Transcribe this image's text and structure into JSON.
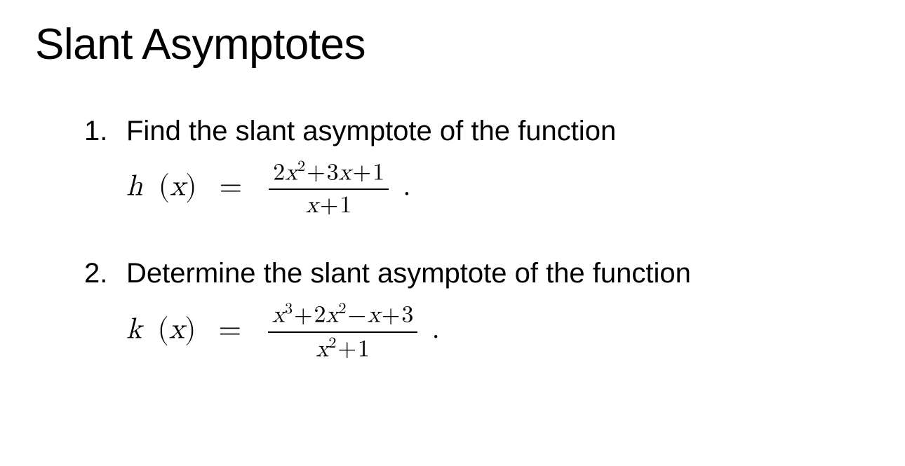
{
  "title": "Slant Asymptotes",
  "text_color": "#000000",
  "background_color": "#ffffff",
  "title_fontsize": 62,
  "body_fontsize": 40,
  "math_fontsize": 42,
  "frac_fontsize": 34,
  "problems": [
    {
      "number": "1.",
      "text": "Find the slant asymptote of the function",
      "function_name": "h",
      "function_var": "x",
      "numerator_parts": [
        "2",
        "x",
        "2",
        "+",
        "3",
        "x",
        "+",
        "1"
      ],
      "denominator_parts": [
        "x",
        "+",
        "1"
      ],
      "numerator_display": "2x²+3x+1",
      "denominator_display": "x+1"
    },
    {
      "number": "2.",
      "text": "Determine the slant asymptote of the function",
      "function_name": "k",
      "function_var": "x",
      "numerator_parts": [
        "x",
        "3",
        "+",
        "2",
        "x",
        "2",
        "−",
        "x",
        "+",
        "3"
      ],
      "denominator_parts": [
        "x",
        "2",
        "+",
        "1"
      ],
      "numerator_display": "x³+2x²−x+3",
      "denominator_display": "x²+1"
    }
  ]
}
